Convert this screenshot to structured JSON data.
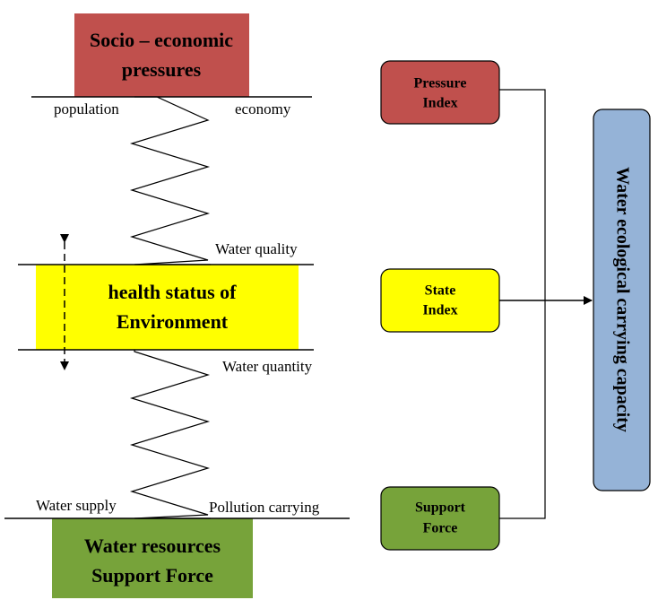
{
  "left_boxes": [
    {
      "lines": [
        "Socio – economic",
        "pressures"
      ]
    },
    {
      "lines": [
        "health status of",
        "Environment"
      ]
    },
    {
      "lines": [
        "Water resources",
        "Support Force"
      ]
    }
  ],
  "labels": {
    "population": "population",
    "economy": "economy",
    "water_quality": "Water quality",
    "water_quantity": "Water quantity",
    "water_supply": "Water supply",
    "pollution_carrying": "Pollution carrying"
  },
  "index_boxes": [
    {
      "lines": [
        "Pressure",
        "Index"
      ]
    },
    {
      "lines": [
        "State",
        "Index"
      ]
    },
    {
      "lines": [
        "Support",
        "Force"
      ]
    }
  ],
  "result": "Water ecological carrying capacity"
}
